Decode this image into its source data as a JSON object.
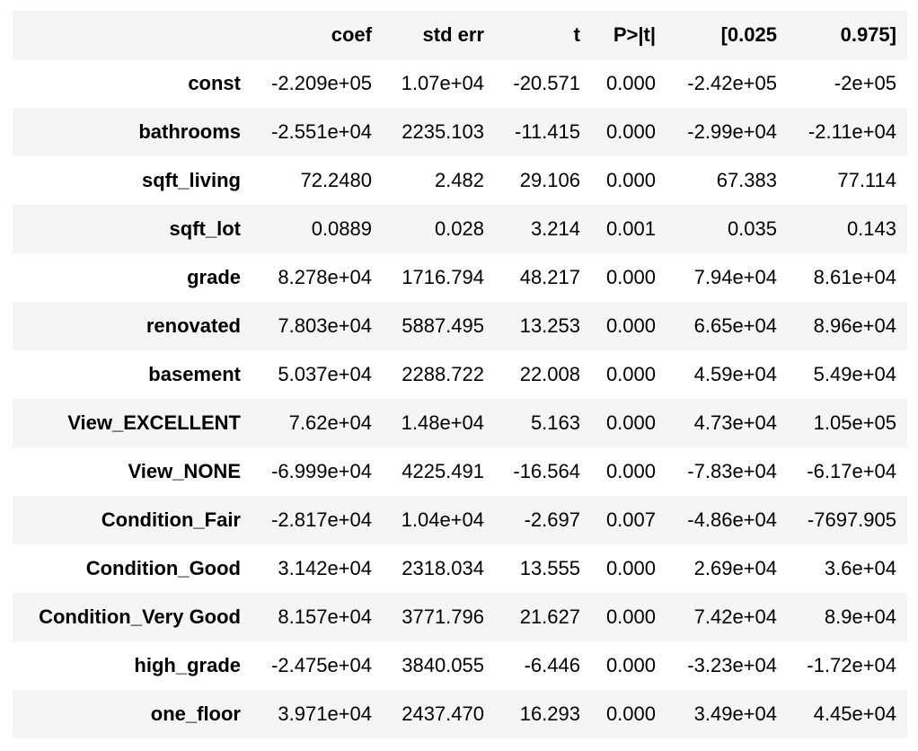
{
  "table": {
    "columns": [
      "",
      "coef",
      "std err",
      "t",
      "P>|t|",
      "[0.025",
      "0.975]"
    ],
    "rows": [
      {
        "label": "const",
        "values": [
          "-2.209e+05",
          "1.07e+04",
          "-20.571",
          "0.000",
          "-2.42e+05",
          "-2e+05"
        ]
      },
      {
        "label": "bathrooms",
        "values": [
          "-2.551e+04",
          "2235.103",
          "-11.415",
          "0.000",
          "-2.99e+04",
          "-2.11e+04"
        ]
      },
      {
        "label": "sqft_living",
        "values": [
          "72.2480",
          "2.482",
          "29.106",
          "0.000",
          "67.383",
          "77.114"
        ]
      },
      {
        "label": "sqft_lot",
        "values": [
          "0.0889",
          "0.028",
          "3.214",
          "0.001",
          "0.035",
          "0.143"
        ]
      },
      {
        "label": "grade",
        "values": [
          "8.278e+04",
          "1716.794",
          "48.217",
          "0.000",
          "7.94e+04",
          "8.61e+04"
        ]
      },
      {
        "label": "renovated",
        "values": [
          "7.803e+04",
          "5887.495",
          "13.253",
          "0.000",
          "6.65e+04",
          "8.96e+04"
        ]
      },
      {
        "label": "basement",
        "values": [
          "5.037e+04",
          "2288.722",
          "22.008",
          "0.000",
          "4.59e+04",
          "5.49e+04"
        ]
      },
      {
        "label": "View_EXCELLENT",
        "values": [
          "7.62e+04",
          "1.48e+04",
          "5.163",
          "0.000",
          "4.73e+04",
          "1.05e+05"
        ]
      },
      {
        "label": "View_NONE",
        "values": [
          "-6.999e+04",
          "4225.491",
          "-16.564",
          "0.000",
          "-7.83e+04",
          "-6.17e+04"
        ]
      },
      {
        "label": "Condition_Fair",
        "values": [
          "-2.817e+04",
          "1.04e+04",
          "-2.697",
          "0.007",
          "-4.86e+04",
          "-7697.905"
        ]
      },
      {
        "label": "Condition_Good",
        "values": [
          "3.142e+04",
          "2318.034",
          "13.555",
          "0.000",
          "2.69e+04",
          "3.6e+04"
        ]
      },
      {
        "label": "Condition_Very Good",
        "values": [
          "8.157e+04",
          "3771.796",
          "21.627",
          "0.000",
          "7.42e+04",
          "8.9e+04"
        ]
      },
      {
        "label": "high_grade",
        "values": [
          "-2.475e+04",
          "3840.055",
          "-6.446",
          "0.000",
          "-3.23e+04",
          "-1.72e+04"
        ]
      },
      {
        "label": "one_floor",
        "values": [
          "3.971e+04",
          "2437.470",
          "16.293",
          "0.000",
          "3.49e+04",
          "4.45e+04"
        ]
      }
    ]
  }
}
